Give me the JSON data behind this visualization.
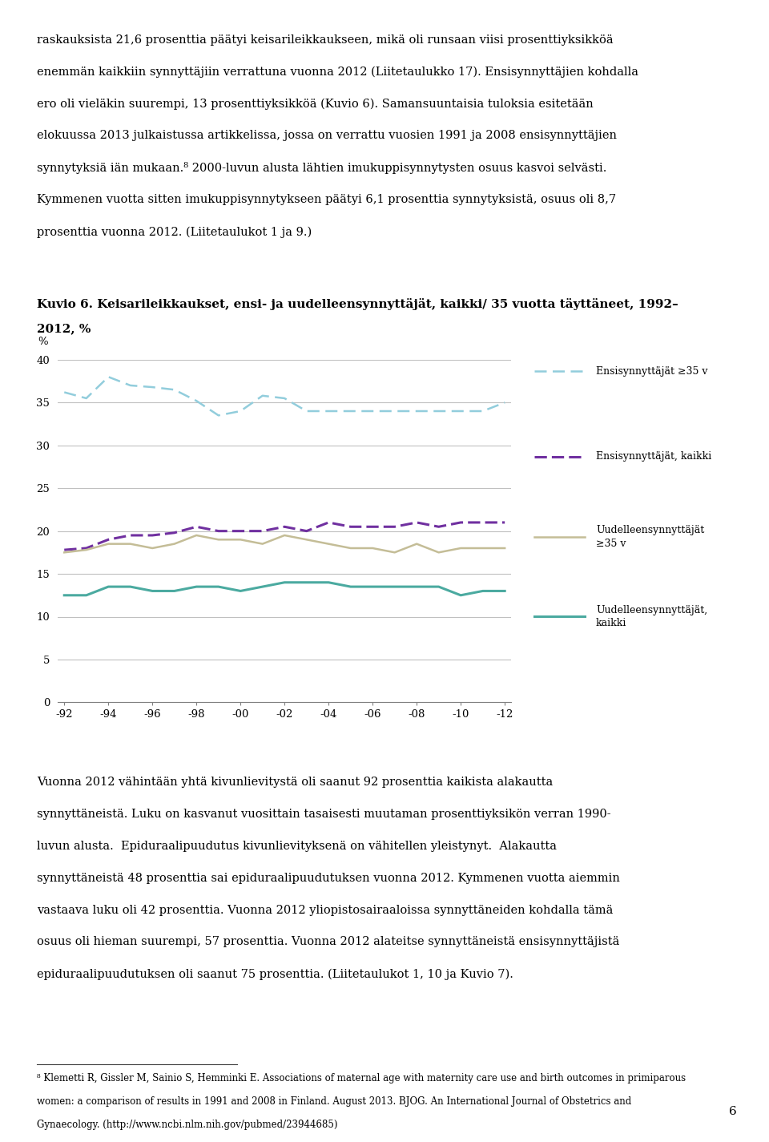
{
  "title": "Kuvio 6. Keisarileikkaukset, ensi- ja uudelleensynnyttäjät, kaikki/ 35 vuotta täyttäneet, 1992–2012, %",
  "title_line1": "Kuvio 6. Keisarileikkaukset, ensi- ja uudelleensynnyttäjät, kaikki/ 35 vuotta täyttäneet, 1992–",
  "title_line2": "2012, %",
  "x_labels": [
    "-92",
    "-94",
    "-96",
    "-98",
    "-00",
    "-02",
    "-04",
    "-06",
    "-08",
    "-10",
    "-12"
  ],
  "ylabel": "%",
  "ylim": [
    0,
    40
  ],
  "yticks": [
    0,
    5,
    10,
    15,
    20,
    25,
    30,
    35,
    40
  ],
  "series": {
    "ensi_yli35": {
      "label": "Ensisynnyttäjät ≥35 v",
      "color": "#92CDDC",
      "values": [
        36.2,
        35.5,
        38.0,
        37.0,
        36.8,
        36.5,
        35.2,
        33.5,
        34.0,
        35.8,
        35.5,
        34.0,
        34.0,
        34.0,
        34.0,
        34.0,
        34.0,
        34.0,
        34.0,
        34.0,
        35.0
      ]
    },
    "ensi_kaikki": {
      "label": "Ensisynnyttäjät, kaikki",
      "color": "#7030A0",
      "values": [
        17.8,
        18.0,
        19.0,
        19.5,
        19.5,
        19.8,
        20.5,
        20.0,
        20.0,
        20.0,
        20.5,
        20.0,
        21.0,
        20.5,
        20.5,
        20.5,
        21.0,
        20.5,
        21.0,
        21.0,
        21.0
      ]
    },
    "uudell_yli35": {
      "label": "Uudelleensynnyttäjät\n≥35 v",
      "color": "#C4BD97",
      "values": [
        17.5,
        17.8,
        18.5,
        18.5,
        18.0,
        18.5,
        19.5,
        19.0,
        19.0,
        18.5,
        19.5,
        19.0,
        18.5,
        18.0,
        18.0,
        17.5,
        18.5,
        17.5,
        18.0,
        18.0,
        18.0
      ]
    },
    "uudell_kaikki": {
      "label": "Uudelleensynnyttäjät,\nkaikki",
      "color": "#4BAAA0",
      "values": [
        12.5,
        12.5,
        13.5,
        13.5,
        13.0,
        13.0,
        13.5,
        13.5,
        13.0,
        13.5,
        14.0,
        14.0,
        14.0,
        13.5,
        13.5,
        13.5,
        13.5,
        13.5,
        12.5,
        13.0,
        13.0
      ]
    }
  },
  "top_text_lines": [
    "raskauksista 21,6 prosenttia päätyi keisarileikkaukseen, mikä oli runsaan viisi prosenttiyksikköä",
    "enemmän kaikkiin synnyttäjiin verrattuna vuonna 2012 (Liitetaulukko 17). Ensisynnyttäjien kohdalla",
    "ero oli vieläkin suurempi, 13 prosenttiyksikköä (Kuvio 6). Samansuuntaisia tuloksia esitetään",
    "elokuussa 2013 julkaistussa artikkelissa, jossa on verrattu vuosien 1991 ja 2008 ensisynnyttäjien",
    "synnytyksiä iän mukaan.⁸ 2000-luvun alusta lähtien imukuppisynnytysten osuus kasvoi selvästi.",
    "Kymmenen vuotta sitten imukuppisynnytykseen päätyi 6,1 prosenttia synnytyksistä, osuus oli 8,7",
    "prosenttia vuonna 2012. (Liitetaulukot 1 ja 9.)"
  ],
  "bottom_text_lines": [
    "Vuonna 2012 vähintään yhtä kivunlievitystä oli saanut 92 prosenttia kaikista alakautta",
    "synnyttäneistä. Luku on kasvanut vuosittain tasaisesti muutaman prosenttiyksikön verran 1990-",
    "luvun alusta.  Epiduraalipuudutus kivunlievityksenä on vähitellen yleistynyt.  Alakautta",
    "synnyttäneistä 48 prosenttia sai epiduraalipuudutuksen vuonna 2012. Kymmenen vuotta aiemmin",
    "vastaava luku oli 42 prosenttia. Vuonna 2012 yliopistosairaaloissa synnyttäneiden kohdalla tämä",
    "osuus oli hieman suurempi, 57 prosenttia. Vuonna 2012 alateitse synnyttäneistä ensisynnyttäjistä",
    "epiduraalipuudutuksen oli saanut 75 prosenttia. (Liitetaulukot 1, 10 ja Kuvio 7)."
  ],
  "footnote_lines": [
    "⁸ Klemetti R, Gissler M, Sainio S, Hemminki E. Associations of maternal age with maternity care use and birth outcomes in primiparous",
    "women: a comparison of results in 1991 and 2008 in Finland. August 2013. BJOG. An International Journal of Obstetrics and",
    "Gynaecology. (http://www.ncbi.nlm.nih.gov/pubmed/23944685)"
  ],
  "page_number": "6",
  "background_color": "#ffffff",
  "grid_color": "#C0C0C0",
  "font_size_body": 10.5,
  "font_size_footnote": 8.5,
  "font_size_axis": 9.5,
  "font_size_title": 11
}
